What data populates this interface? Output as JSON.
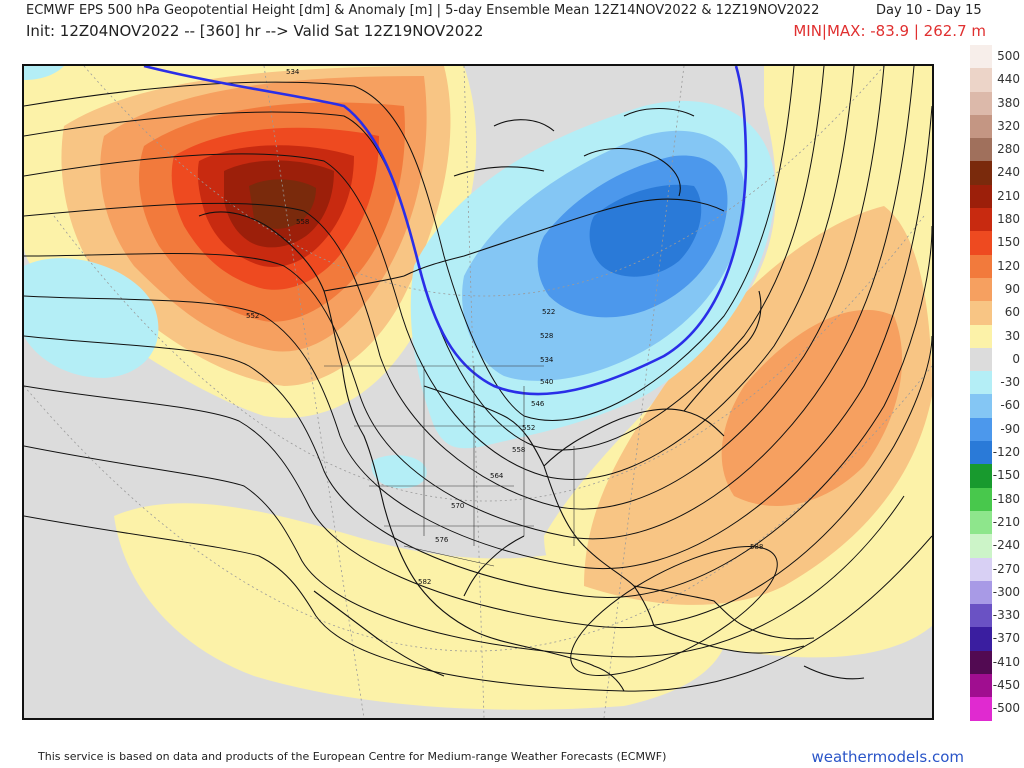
{
  "header": {
    "title": "ECMWF EPS 500 hPa Geopotential Height [dm] & Anomaly [m] | 5-day Ensemble Mean 12Z14NOV2022 & 12Z19NOV2022",
    "period": "Day 10 - Day 15",
    "init": "Init: 12Z04NOV2022 -- [360] hr --> Valid Sat 12Z19NOV2022",
    "minmax": "MIN|MAX: -83.9 | 262.7 m"
  },
  "map": {
    "contour_labels": [
      "534",
      "552",
      "558",
      "522",
      "528",
      "534",
      "540",
      "546",
      "552",
      "558",
      "564",
      "570",
      "576",
      "582",
      "588"
    ],
    "highlight_contour": "540",
    "colors": {
      "background": "#dcdcdc",
      "coast": "#111111",
      "contour": "#111111",
      "highlight": "#2a2ee8"
    }
  },
  "legend": {
    "entries": [
      {
        "label": "500",
        "color": "#f7eeea"
      },
      {
        "label": "440",
        "color": "#ecd4c8"
      },
      {
        "label": "380",
        "color": "#dcb9aa"
      },
      {
        "label": "320",
        "color": "#c49683"
      },
      {
        "label": "280",
        "color": "#a0705c"
      },
      {
        "label": "240",
        "color": "#7a2a0c"
      },
      {
        "label": "210",
        "color": "#9c1f0a"
      },
      {
        "label": "180",
        "color": "#c82a10"
      },
      {
        "label": "150",
        "color": "#ee4a20"
      },
      {
        "label": "120",
        "color": "#f27a3c"
      },
      {
        "label": "90",
        "color": "#f6a060"
      },
      {
        "label": "60",
        "color": "#f8c584"
      },
      {
        "label": "30",
        "color": "#fcf2a8"
      },
      {
        "label": "0",
        "color": "#dcdcdc"
      },
      {
        "label": "-30",
        "color": "#b4eef6"
      },
      {
        "label": "-60",
        "color": "#84c6f4"
      },
      {
        "label": "-90",
        "color": "#4c98ec"
      },
      {
        "label": "-120",
        "color": "#2a7ad8"
      },
      {
        "label": "-150",
        "color": "#189a2e"
      },
      {
        "label": "-180",
        "color": "#48c84c"
      },
      {
        "label": "-210",
        "color": "#8ee68c"
      },
      {
        "label": "-240",
        "color": "#ccf4c8"
      },
      {
        "label": "-270",
        "color": "#d8d0f4"
      },
      {
        "label": "-300",
        "color": "#a89ae6"
      },
      {
        "label": "-330",
        "color": "#6a52c4"
      },
      {
        "label": "-370",
        "color": "#3a1ea0"
      },
      {
        "label": "-410",
        "color": "#520a52"
      },
      {
        "label": "-450",
        "color": "#a00e90"
      },
      {
        "label": "-500",
        "color": "#e02ad0"
      }
    ]
  },
  "footer": {
    "credit": "This service is based on data and products of the European Centre for Medium-range Weather Forecasts (ECMWF)",
    "site": "weathermodels.com"
  }
}
